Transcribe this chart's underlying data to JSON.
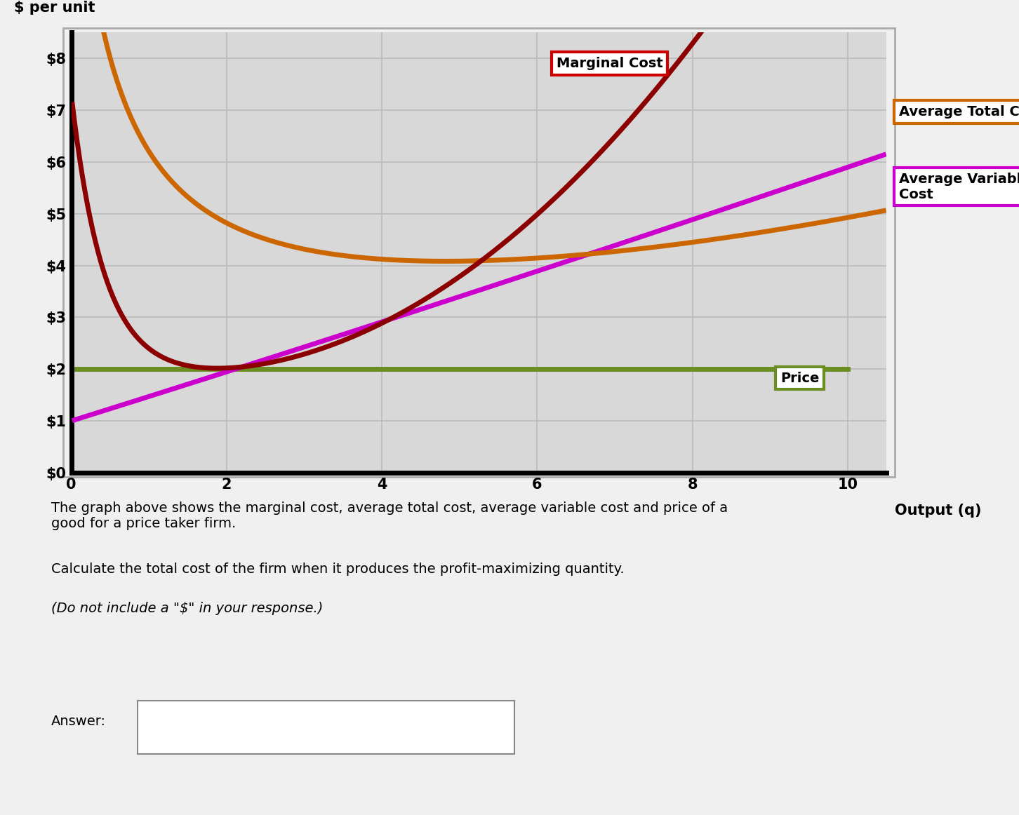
{
  "title_ylabel": "$ per unit",
  "xlabel": "Output (q)",
  "ylim": [
    0,
    8.5
  ],
  "xlim": [
    0,
    10.5
  ],
  "yticks": [
    0,
    1,
    2,
    3,
    4,
    5,
    6,
    7,
    8
  ],
  "ytick_labels": [
    "$0",
    "$1",
    "$2",
    "$3",
    "$4",
    "$5",
    "$6",
    "$7",
    "$8"
  ],
  "xticks": [
    0,
    2,
    4,
    6,
    8,
    10
  ],
  "xtick_labels": [
    "0",
    "2",
    "4",
    "6",
    "8",
    "10"
  ],
  "price_level": 2.0,
  "mc_color": "#8B0000",
  "atc_color": "#CC6600",
  "avc_color": "#CC00CC",
  "price_color": "#6B8E23",
  "chart_bg": "#D8D8D8",
  "outer_bg": "#DCDCDC",
  "page_bg": "#F0F0F0",
  "grid_color": "#BBBBBB",
  "mc_box_color": "#CC0000",
  "atc_box_color": "#CC6600",
  "avc_box_color": "#CC00CC",
  "price_box_color": "#6B8E23",
  "annotation_mc": "Marginal Cost",
  "annotation_atc": "Average Total Cost",
  "annotation_avc": "Average Variable\nCost",
  "annotation_price": "Price",
  "text1": "The graph above shows the marginal cost, average total cost, average variable cost and price of a\ngood for a price taker firm.",
  "text2": "Calculate the total cost of the firm when it produces the profit-maximizing quantity.",
  "text3": "(Do not include a \"$\" in your response.)",
  "answer_label": "Answer:"
}
